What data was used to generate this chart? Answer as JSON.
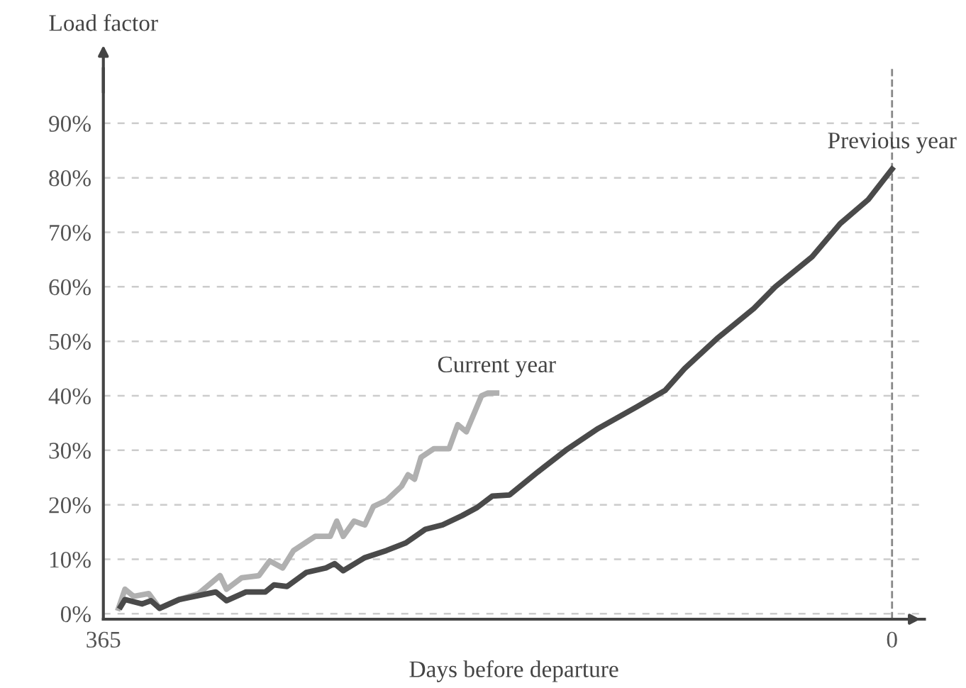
{
  "chart_data": {
    "type": "line",
    "xlabel": "Days before departure",
    "ylabel": "Load factor",
    "xlim": [
      365,
      -15
    ],
    "ylim": [
      -1,
      100
    ],
    "xticks": [
      365,
      0
    ],
    "yticks": [
      {
        "value": 0,
        "label": "0%"
      },
      {
        "value": 10,
        "label": "10%"
      },
      {
        "value": 20,
        "label": "20%"
      },
      {
        "value": 30,
        "label": "30%"
      },
      {
        "value": 40,
        "label": "40%"
      },
      {
        "value": 50,
        "label": "50%"
      },
      {
        "value": 60,
        "label": "60%"
      },
      {
        "value": 70,
        "label": "70%"
      },
      {
        "value": 80,
        "label": "80%"
      },
      {
        "value": 90,
        "label": "90%"
      }
    ],
    "grid": "y",
    "legend": false,
    "marker": "none",
    "line_style": "solid",
    "ref_lines": [
      {
        "axis": "x",
        "value": 0,
        "color": "#888888",
        "line_style": "dashed"
      }
    ],
    "series": [
      {
        "name": "Current year",
        "color": "#b0b0b0",
        "x": [
          358,
          355,
          351,
          344,
          339,
          330,
          321,
          311,
          308,
          301,
          293,
          288,
          282,
          277,
          267,
          260,
          257,
          254,
          249,
          244,
          240,
          234,
          227,
          224,
          221,
          218,
          212,
          205,
          201,
          197,
          190,
          187,
          183
        ],
        "values": [
          1,
          4.5,
          3.2,
          3.7,
          1,
          2.6,
          3.7,
          7,
          4.5,
          6.6,
          7,
          9.7,
          8.4,
          11.6,
          14.2,
          14.2,
          17,
          14.2,
          17,
          16.3,
          19.7,
          20.8,
          23.4,
          25.5,
          24.7,
          28.7,
          30.3,
          30.3,
          34.7,
          33.4,
          40,
          40.5,
          40.5
        ]
      },
      {
        "name": "Previous year",
        "color": "#4a4a4a",
        "x": [
          357,
          355,
          347,
          343,
          339,
          330,
          313,
          308,
          299,
          290,
          286,
          280,
          271,
          262,
          258,
          254,
          244,
          234,
          225,
          216,
          208,
          199,
          192,
          185,
          177,
          164,
          151,
          136,
          118,
          105,
          96,
          81,
          64,
          54,
          37,
          24,
          11,
          0
        ],
        "values": [
          1.3,
          2.6,
          1.8,
          2.4,
          1,
          2.6,
          4,
          2.4,
          4,
          4,
          5.3,
          5,
          7.6,
          8.4,
          9.2,
          7.9,
          10.3,
          11.6,
          13,
          15.5,
          16.3,
          18,
          19.5,
          21.6,
          21.8,
          26,
          30,
          34,
          38,
          41,
          45,
          50.5,
          56,
          60,
          65.5,
          71.6,
          76,
          81.6
        ]
      }
    ]
  }
}
